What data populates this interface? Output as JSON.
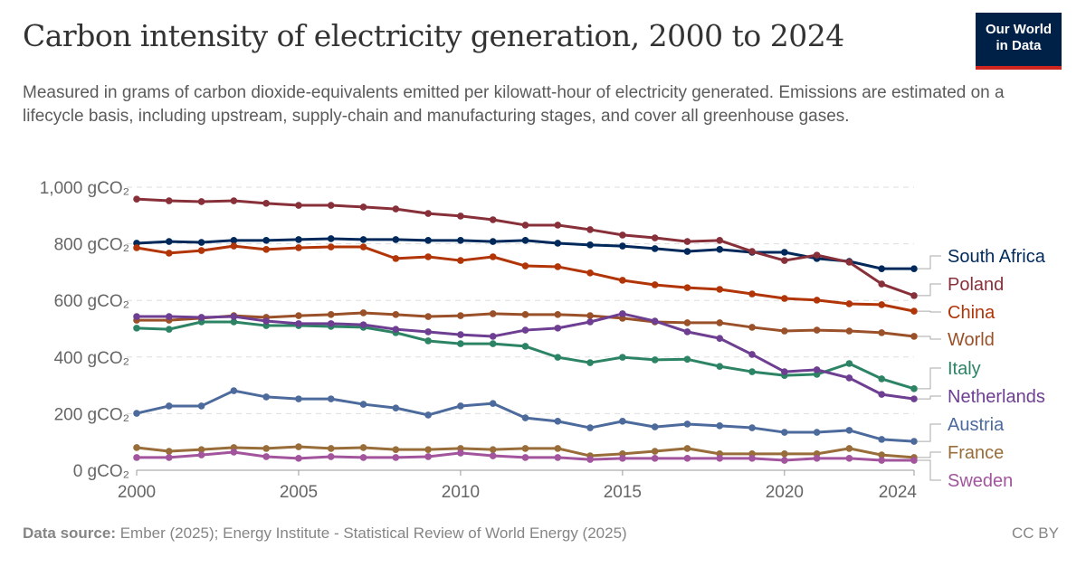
{
  "title": "Carbon intensity of electricity generation, 2000 to 2024",
  "subtitle": "Measured in grams of carbon dioxide-equivalents emitted per kilowatt-hour of electricity generated. Emissions are estimated on a lifecycle basis, including upstream, supply-chain and manufacturing stages, and cover all greenhouse gases.",
  "logo": "Our World in Data",
  "footer": {
    "source_label": "Data source:",
    "source": "Ember (2025); Energy Institute - Statistical Review of World Energy (2025)",
    "license": "CC BY"
  },
  "chart_data": {
    "type": "line",
    "title": "Carbon intensity of electricity generation, 2000 to 2024",
    "x": [
      2000,
      2001,
      2002,
      2003,
      2004,
      2005,
      2006,
      2007,
      2008,
      2009,
      2010,
      2011,
      2012,
      2013,
      2014,
      2015,
      2016,
      2017,
      2018,
      2019,
      2020,
      2021,
      2022,
      2023,
      2024
    ],
    "x_ticks": [
      "2000",
      "2005",
      "2010",
      "2015",
      "2020",
      "2024"
    ],
    "x_tick_values": [
      2000,
      2005,
      2010,
      2015,
      2020,
      2024
    ],
    "y_ticks": [
      "0 gCO₂",
      "200 gCO₂",
      "400 gCO₂",
      "600 gCO₂",
      "800 gCO₂",
      "1,000 gCO₂"
    ],
    "y_tick_values": [
      0,
      200,
      400,
      600,
      800,
      1000
    ],
    "ylim": [
      0,
      1000
    ],
    "grid": "horizontal dashed",
    "legend": "right, inline labels",
    "series": [
      {
        "name": "South Africa",
        "color": "#00295b",
        "values": [
          802,
          808,
          805,
          812,
          812,
          815,
          818,
          815,
          815,
          812,
          812,
          808,
          812,
          802,
          796,
          792,
          783,
          773,
          780,
          770,
          770,
          748,
          738,
          712,
          712
        ]
      },
      {
        "name": "Poland",
        "color": "#883039",
        "values": [
          958,
          952,
          949,
          952,
          943,
          936,
          936,
          930,
          923,
          907,
          898,
          885,
          866,
          866,
          850,
          831,
          821,
          808,
          812,
          773,
          741,
          760,
          735,
          658,
          617
        ]
      },
      {
        "name": "China",
        "color": "#b13507",
        "values": [
          786,
          767,
          776,
          792,
          780,
          786,
          789,
          789,
          748,
          754,
          741,
          754,
          722,
          719,
          697,
          671,
          655,
          645,
          639,
          623,
          607,
          601,
          588,
          585,
          562
        ]
      },
      {
        "name": "World",
        "color": "#9a5129",
        "values": [
          530,
          530,
          537,
          546,
          540,
          546,
          550,
          556,
          550,
          543,
          546,
          553,
          550,
          550,
          546,
          537,
          524,
          521,
          521,
          505,
          492,
          495,
          492,
          486,
          473
        ]
      },
      {
        "name": "Italy",
        "color": "#2c8465",
        "values": [
          502,
          498,
          524,
          524,
          511,
          511,
          508,
          505,
          486,
          457,
          447,
          447,
          438,
          399,
          380,
          399,
          390,
          392,
          367,
          348,
          335,
          339,
          377,
          323,
          288
        ]
      },
      {
        "name": "Netherlands",
        "color": "#6d3e91",
        "values": [
          543,
          543,
          540,
          543,
          527,
          518,
          518,
          514,
          498,
          489,
          479,
          473,
          495,
          502,
          524,
          553,
          527,
          489,
          466,
          409,
          348,
          355,
          326,
          268,
          252
        ]
      },
      {
        "name": "Austria",
        "color": "#4c6a9c",
        "values": [
          201,
          227,
          227,
          281,
          259,
          252,
          252,
          233,
          220,
          195,
          227,
          236,
          185,
          173,
          150,
          173,
          153,
          163,
          157,
          150,
          134,
          134,
          141,
          109,
          102
        ]
      },
      {
        "name": "France",
        "color": "#996d39",
        "values": [
          80,
          67,
          73,
          80,
          77,
          83,
          77,
          80,
          73,
          73,
          77,
          73,
          77,
          77,
          51,
          58,
          67,
          77,
          58,
          58,
          58,
          58,
          77,
          54,
          45
        ]
      },
      {
        "name": "Sweden",
        "color": "#a2559c",
        "values": [
          45,
          45,
          54,
          64,
          48,
          42,
          48,
          45,
          45,
          48,
          61,
          51,
          45,
          45,
          38,
          42,
          42,
          42,
          42,
          42,
          35,
          42,
          42,
          35,
          35
        ]
      }
    ]
  }
}
